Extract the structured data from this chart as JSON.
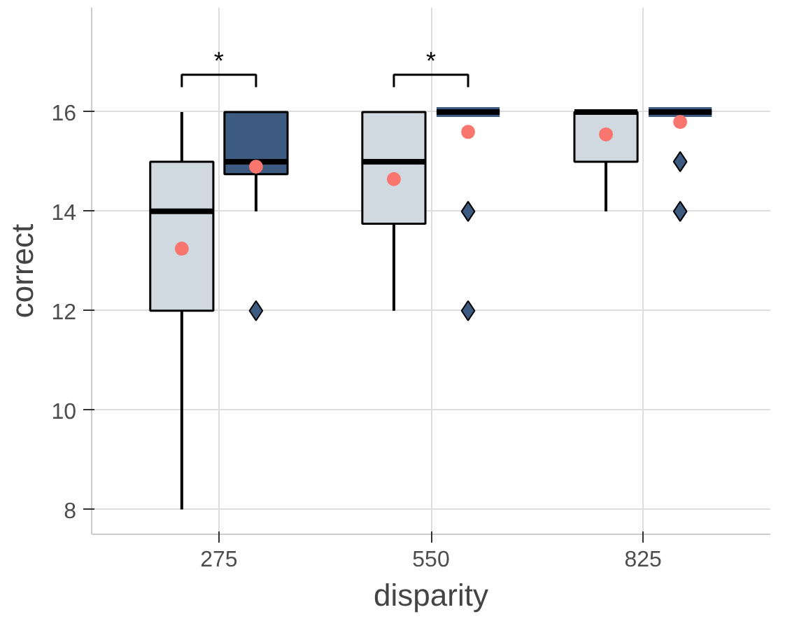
{
  "chart_data": {
    "type": "box",
    "xlabel": "disparity",
    "ylabel": "correct",
    "categories": [
      "275",
      "550",
      "825"
    ],
    "ylim": [
      7.5,
      18.1
    ],
    "yticks": [
      8,
      10,
      12,
      14,
      16
    ],
    "grid": true,
    "annotations": [
      "*",
      "*"
    ],
    "series": [
      {
        "color": "#d0d8e0",
        "boxes": [
          {
            "low": 8,
            "q1": 12,
            "median": 14,
            "q3": 15,
            "high": 16,
            "mean": 13.25
          },
          {
            "low": 12,
            "q1": 13.75,
            "median": 15,
            "q3": 16,
            "high": 16,
            "mean": 14.65
          },
          {
            "low": 14,
            "q1": 15,
            "median": 16,
            "q3": 16,
            "high": 16,
            "mean": 15.55
          }
        ]
      },
      {
        "color": "#3d5a80",
        "boxes": [
          {
            "low": 14,
            "q1": 14.75,
            "median": 15,
            "q3": 16,
            "high": 16,
            "mean": 14.9,
            "outliers": [
              12
            ]
          },
          {
            "low": 16,
            "q1": 16,
            "median": 16,
            "q3": 16,
            "high": 16,
            "mean": 15.6,
            "outliers": [
              14,
              12
            ]
          },
          {
            "low": 16,
            "q1": 16,
            "median": 16,
            "q3": 16,
            "high": 16,
            "mean": 15.8,
            "outliers": [
              15,
              14
            ]
          }
        ]
      }
    ]
  }
}
